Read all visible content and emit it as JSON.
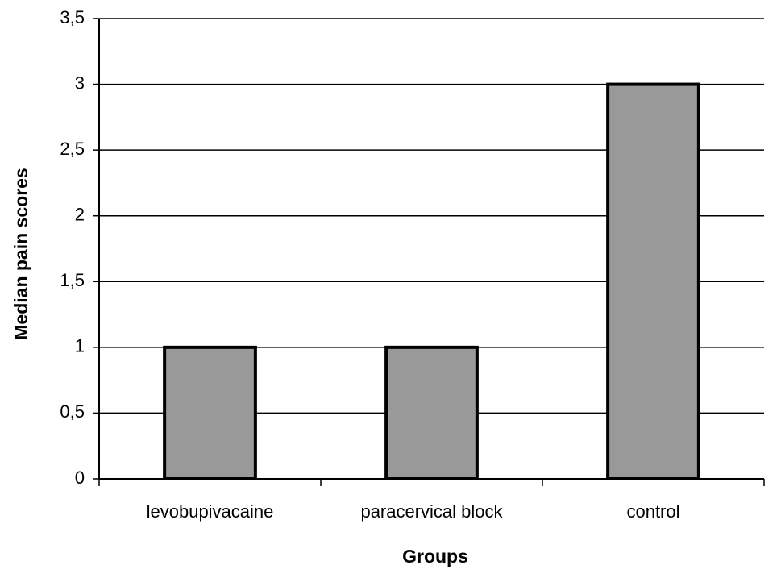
{
  "chart_data": {
    "type": "bar",
    "categories": [
      "levobupivacaine",
      "paracervical block",
      "control"
    ],
    "values": [
      1,
      1,
      3
    ],
    "color": "#999999",
    "x_label": "Groups",
    "y_label": "Median pain scores",
    "ylim": [
      0,
      3.5
    ],
    "yticks": [
      0,
      {
        "value": 0.5,
        "label": "0,5"
      },
      1,
      {
        "value": 1.5,
        "label": "1,5"
      },
      2,
      {
        "value": 2.5,
        "label": "2,5"
      },
      3,
      {
        "value": 3.5,
        "label": "3,5"
      }
    ],
    "grid": true
  }
}
